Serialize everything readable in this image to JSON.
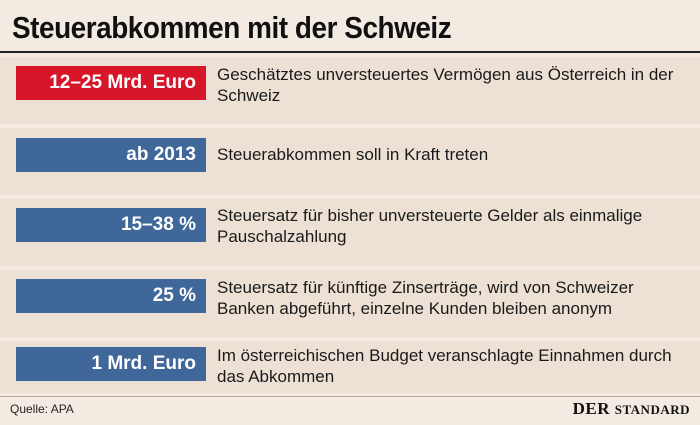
{
  "title": "Steuerabkommen mit der Schweiz",
  "colors": {
    "accent_red": "#d7162a",
    "accent_blue": "#3f679a"
  },
  "facts": [
    {
      "value": "12–25 Mrd. Euro",
      "color": "#d7162a",
      "text": "Geschätztes unversteuertes Vermögen aus Österreich in der Schweiz"
    },
    {
      "value": "ab 2013",
      "color": "#3f679a",
      "text": "Steuerabkommen soll in Kraft treten"
    },
    {
      "value": "15–38 %",
      "color": "#3f679a",
      "text": "Steuersatz für bisher unversteuerte Gelder als einmalige Pauschalzahlung"
    },
    {
      "value": "25 %",
      "color": "#3f679a",
      "text": "Steuersatz für künftige Zinserträge, wird von Schweizer Banken abgeführt, einzelne Kunden bleiben anonym"
    },
    {
      "value": "1 Mrd. Euro",
      "color": "#3f679a",
      "text": "Im österreichischen Budget veranschlagte Einnahmen durch das Abkommen"
    }
  ],
  "footer": {
    "source": "Quelle: APA",
    "logo_part1": "DER",
    "logo_part2": "STANDARD"
  }
}
